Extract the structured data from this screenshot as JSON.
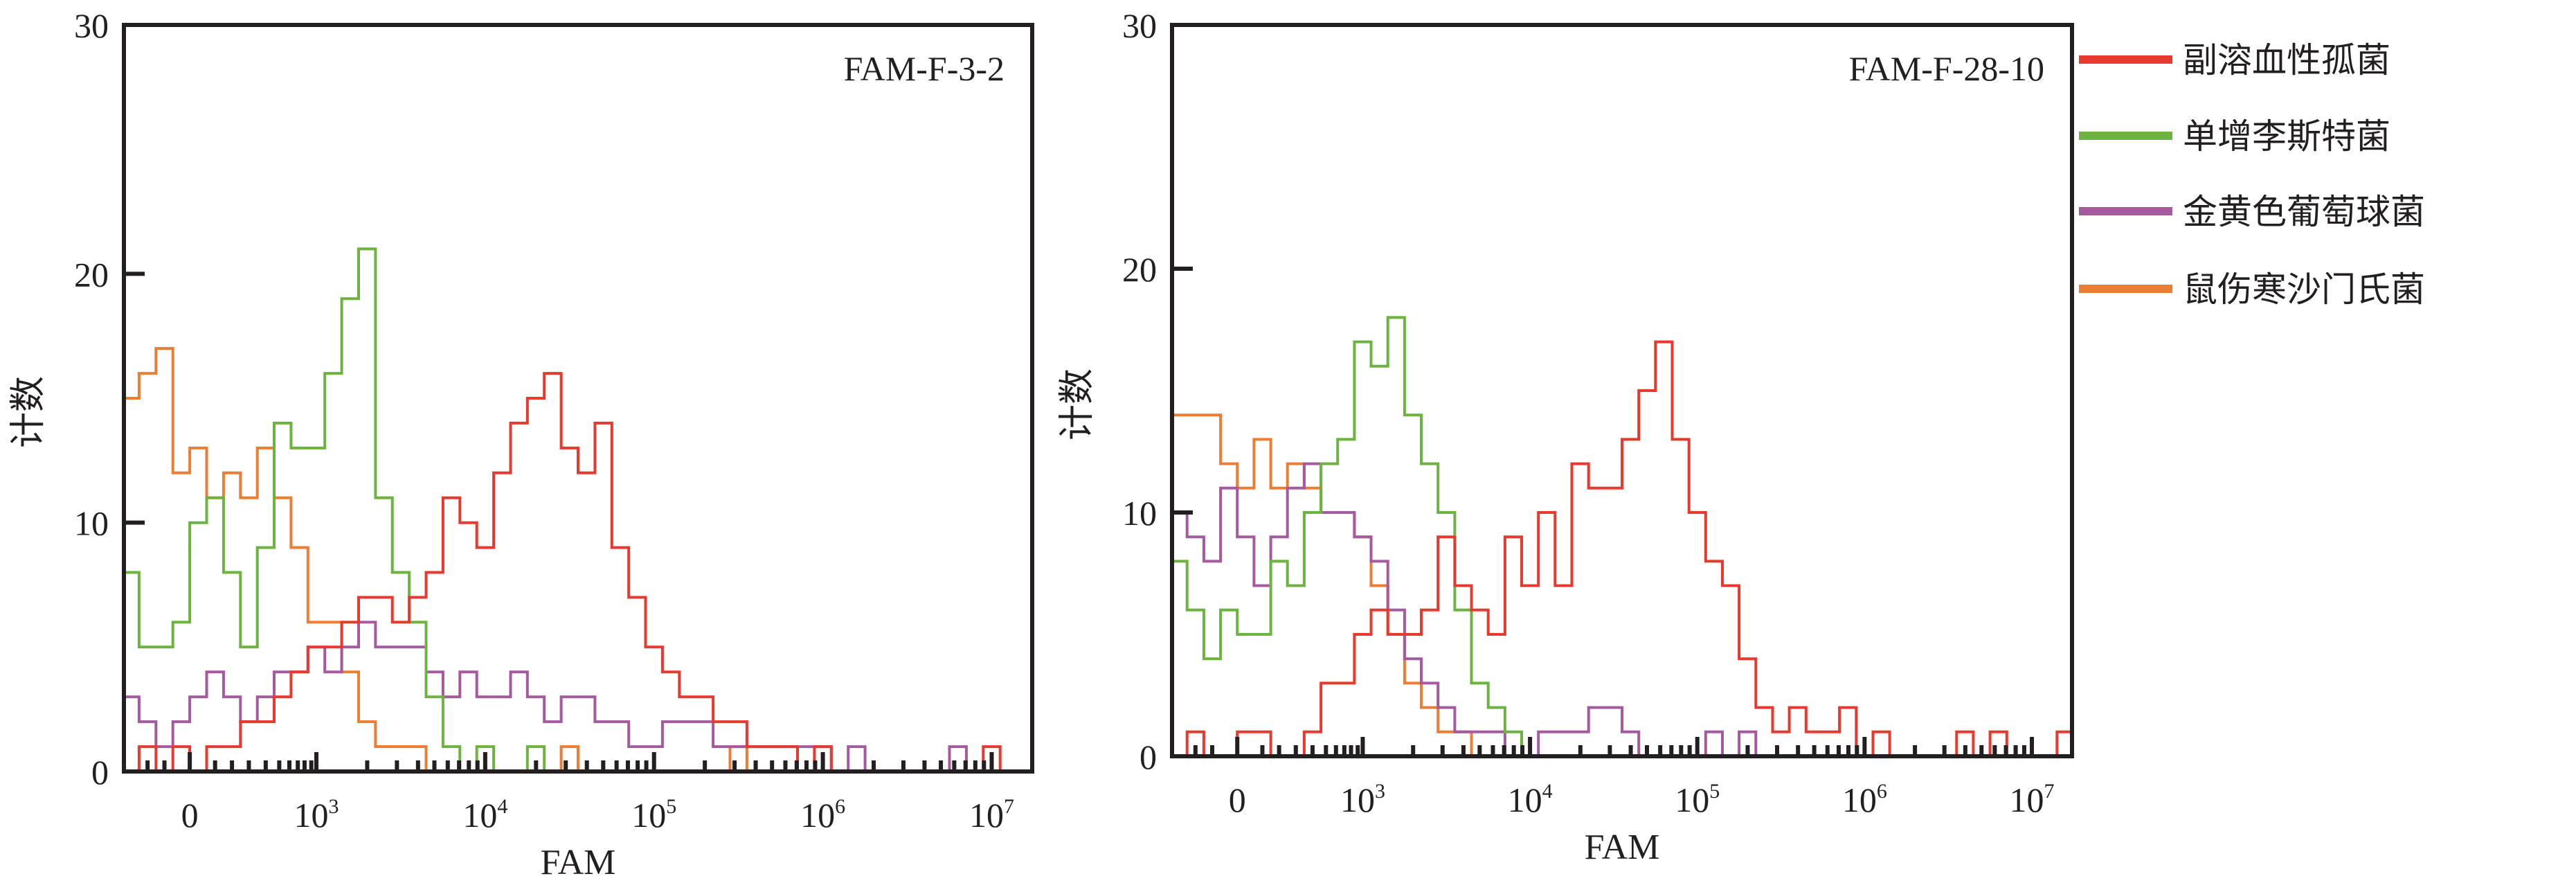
{
  "legend": [
    {
      "label": "副溶血性孤菌",
      "color": "#e8392f"
    },
    {
      "label": "单增李斯特菌",
      "color": "#6db33f"
    },
    {
      "label": "金黄色葡萄球菌",
      "color": "#a55a9f"
    },
    {
      "label": "鼠伤寒沙门氏菌",
      "color": "#ee7d34"
    }
  ],
  "chart_data": [
    {
      "type": "line",
      "subtype": "histogram-step",
      "title": "FAM-F-3-2",
      "xlabel": "FAM",
      "ylabel": "计数",
      "xscale": "biexponential (log10 display units)",
      "xlim": [
        1.86,
        7.24
      ],
      "ylim": [
        0,
        30
      ],
      "yticks": [
        0,
        10,
        20,
        30
      ],
      "xticks": [
        {
          "pos": 2.25,
          "label": "0"
        },
        {
          "pos": 3,
          "base": "10",
          "exp": "3"
        },
        {
          "pos": 4,
          "base": "10",
          "exp": "4"
        },
        {
          "pos": 5,
          "base": "10",
          "exp": "5"
        },
        {
          "pos": 6,
          "base": "10",
          "exp": "6"
        },
        {
          "pos": 7,
          "base": "10",
          "exp": "7"
        }
      ],
      "x_start": 1.9,
      "x_step": 0.1,
      "series": [
        {
          "name": "副溶血性孤菌",
          "values": [
            0,
            1,
            0,
            1,
            0,
            1,
            1,
            2,
            2,
            3,
            4,
            5,
            5,
            6,
            7,
            7,
            6,
            7,
            8,
            11,
            10,
            9,
            12,
            14,
            15,
            16,
            13,
            12,
            14,
            9,
            7,
            5,
            4,
            3,
            3,
            2,
            2,
            1,
            1,
            1,
            0,
            1,
            0,
            0,
            0,
            0,
            0,
            0,
            0,
            0,
            0,
            1,
            0,
            0
          ]
        },
        {
          "name": "单增李斯特菌",
          "values": [
            8,
            5,
            5,
            6,
            10,
            11,
            8,
            5,
            9,
            14,
            13,
            13,
            16,
            19,
            21,
            11,
            8,
            6,
            3,
            1,
            0,
            1,
            0,
            0,
            1,
            0,
            0,
            0,
            0,
            0,
            0,
            0,
            0,
            0,
            0,
            0,
            0,
            0,
            0,
            0,
            0,
            0,
            0,
            0,
            0,
            0,
            0,
            0,
            0,
            0,
            0,
            0,
            0,
            0
          ]
        },
        {
          "name": "金黄色葡萄球菌",
          "values": [
            3,
            2,
            1,
            2,
            3,
            4,
            3,
            2,
            3,
            4,
            4,
            5,
            4,
            5,
            6,
            5,
            5,
            5,
            4,
            3,
            4,
            3,
            3,
            4,
            3,
            2,
            3,
            3,
            2,
            2,
            1,
            1,
            2,
            2,
            2,
            1,
            1,
            1,
            1,
            1,
            1,
            1,
            0,
            1,
            0,
            0,
            0,
            0,
            0,
            1,
            0,
            0,
            0,
            0
          ]
        },
        {
          "name": "鼠伤寒沙门氏菌",
          "values": [
            15,
            16,
            17,
            12,
            13,
            11,
            12,
            11,
            13,
            11,
            9,
            6,
            6,
            4,
            2,
            1,
            1,
            1,
            0,
            0,
            0,
            0,
            0,
            0,
            0,
            0,
            1,
            0,
            0,
            0,
            0,
            0,
            0,
            0,
            0,
            0,
            1,
            0,
            0,
            0,
            0,
            0,
            0,
            0,
            0,
            0,
            0,
            0,
            0,
            0,
            0,
            0,
            0,
            0
          ]
        }
      ]
    },
    {
      "type": "line",
      "subtype": "histogram-step",
      "title": "FAM-F-28-10",
      "xlabel": "FAM",
      "ylabel": "计数",
      "xscale": "biexponential (log10 display units)",
      "xlim": [
        1.86,
        7.24
      ],
      "ylim": [
        0,
        30
      ],
      "yticks": [
        0,
        10,
        20,
        30
      ],
      "xticks": [
        {
          "pos": 2.25,
          "label": "0"
        },
        {
          "pos": 3,
          "base": "10",
          "exp": "3"
        },
        {
          "pos": 4,
          "base": "10",
          "exp": "4"
        },
        {
          "pos": 5,
          "base": "10",
          "exp": "5"
        },
        {
          "pos": 6,
          "base": "10",
          "exp": "6"
        },
        {
          "pos": 7,
          "base": "10",
          "exp": "7"
        }
      ],
      "x_start": 1.9,
      "x_step": 0.1,
      "series": [
        {
          "name": "副溶血性孤菌",
          "values": [
            0,
            1,
            0,
            0,
            1,
            1,
            0,
            0,
            1,
            3,
            3,
            5,
            6,
            5,
            5,
            6,
            9,
            7,
            6,
            5,
            9,
            7,
            10,
            7,
            12,
            11,
            11,
            13,
            15,
            17,
            13,
            10,
            8,
            7,
            4,
            2,
            1,
            2,
            1,
            1,
            2,
            0,
            1,
            0,
            0,
            0,
            0,
            1,
            0,
            1,
            0,
            0,
            0,
            1
          ]
        },
        {
          "name": "单增李斯特菌",
          "values": [
            8,
            6,
            4,
            6,
            5,
            5,
            8,
            7,
            10,
            12,
            13,
            17,
            16,
            18,
            14,
            12,
            10,
            6,
            3,
            2,
            1,
            0,
            0,
            0,
            0,
            0,
            0,
            0,
            0,
            0,
            0,
            0,
            0,
            0,
            0,
            0,
            0,
            0,
            0,
            0,
            0,
            0,
            0,
            0,
            0,
            0,
            0,
            0,
            0,
            0,
            0,
            0,
            0,
            0
          ]
        },
        {
          "name": "金黄色葡萄球菌",
          "values": [
            10,
            9,
            8,
            11,
            9,
            7,
            9,
            11,
            12,
            10,
            10,
            9,
            8,
            6,
            4,
            3,
            2,
            1,
            1,
            1,
            0,
            0,
            1,
            1,
            1,
            2,
            2,
            1,
            0,
            0,
            0,
            0,
            1,
            0,
            1,
            0,
            0,
            0,
            0,
            0,
            0,
            0,
            0,
            0,
            0,
            0,
            0,
            0,
            0,
            0,
            0,
            0,
            0,
            0
          ]
        },
        {
          "name": "鼠伤寒沙门氏菌",
          "values": [
            14,
            14,
            14,
            12,
            11,
            13,
            11,
            12,
            11,
            10,
            10,
            9,
            7,
            5,
            3,
            2,
            1,
            1,
            0,
            0,
            0,
            0,
            0,
            0,
            0,
            0,
            0,
            0,
            0,
            0,
            0,
            0,
            0,
            0,
            0,
            0,
            0,
            0,
            0,
            0,
            0,
            0,
            0,
            0,
            0,
            0,
            0,
            0,
            0,
            0,
            0,
            0,
            0,
            0
          ]
        }
      ]
    }
  ]
}
